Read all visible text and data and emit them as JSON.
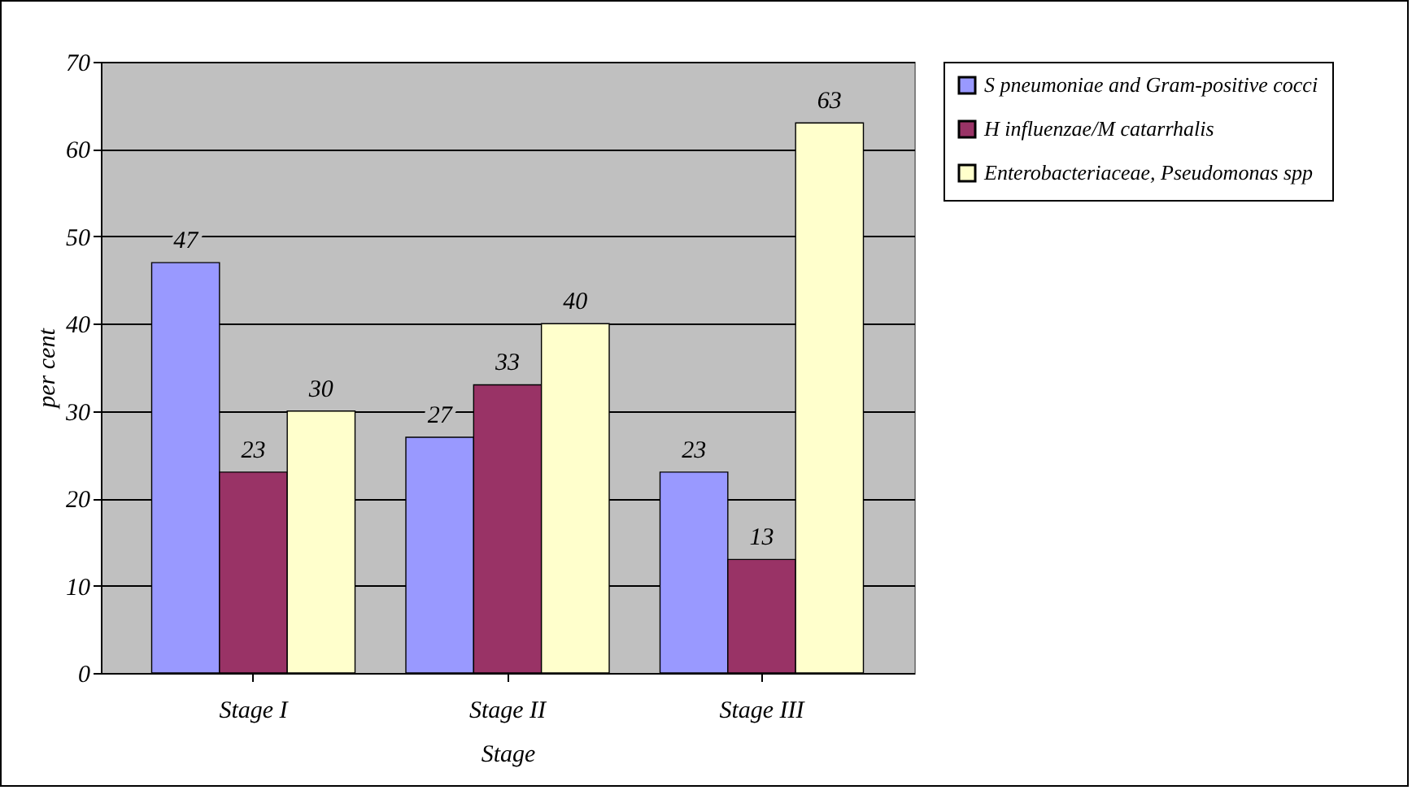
{
  "chart_data": {
    "type": "bar",
    "xlabel": "Stage",
    "ylabel": "per cent",
    "categories": [
      "Stage I",
      "Stage II",
      "Stage III"
    ],
    "series": [
      {
        "name": "S pneumoniae and Gram-positive cocci",
        "color": "#9999ff",
        "values": [
          47,
          27,
          23
        ]
      },
      {
        "name": "H influenzae/M catarrhalis",
        "color": "#993366",
        "values": [
          23,
          33,
          13
        ]
      },
      {
        "name": "Enterobacteriaceae, Pseudomonas spp",
        "color": "#ffffcc",
        "values": [
          30,
          40,
          63
        ]
      }
    ],
    "ylim": [
      0,
      70
    ],
    "yticks": [
      0,
      10,
      20,
      30,
      40,
      50,
      60,
      70
    ],
    "grid": "y",
    "legend": "right",
    "data_labels": true
  }
}
